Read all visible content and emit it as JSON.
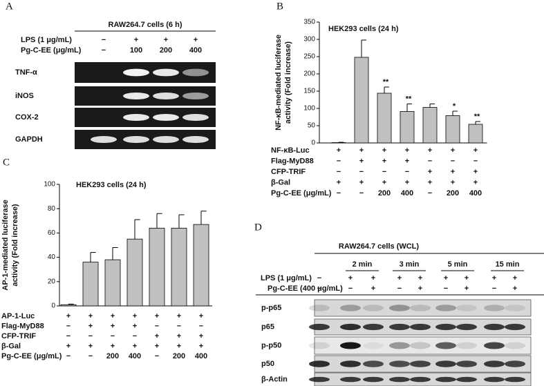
{
  "panel_a": {
    "letter": "A",
    "title": "RAW264.7 cells (6 h)",
    "rows": [
      {
        "label": "LPS (1 μg/mL)",
        "values": [
          "−",
          "+",
          "+",
          "+"
        ]
      },
      {
        "label": "Pg-C-EE (μg/mL)",
        "values": [
          "−",
          "100",
          "200",
          "400"
        ]
      }
    ],
    "bands": [
      "TNF-α",
      "iNOS",
      "COX-2",
      "GAPDH"
    ]
  },
  "chart_data": [
    {
      "type": "bar",
      "letter": "B",
      "title": "HEK293 cells (24 h)",
      "ylabel": [
        "NF-κB-mediated luciferase",
        "activity (Fold increase)"
      ],
      "values": [
        1,
        248,
        144,
        91,
        103,
        79,
        54
      ],
      "errors": [
        1,
        50,
        18,
        22,
        10,
        13,
        8
      ],
      "significance": [
        null,
        null,
        "**",
        "**",
        null,
        "*",
        "**"
      ],
      "color": "#c0c0c0",
      "ylim": [
        0,
        350
      ],
      "yticks": [
        0,
        50,
        100,
        150,
        200,
        250,
        300,
        350
      ],
      "conditions": [
        {
          "label": "NF-κB-Luc",
          "values": [
            "+",
            "+",
            "+",
            "+",
            "+",
            "+",
            "+"
          ]
        },
        {
          "label": "Flag-MyD88",
          "values": [
            "−",
            "+",
            "+",
            "+",
            "−",
            "−",
            "−"
          ]
        },
        {
          "label": "CFP-TRIF",
          "values": [
            "−",
            "−",
            "−",
            "−",
            "+",
            "+",
            "+"
          ]
        },
        {
          "label": "β-Gal",
          "values": [
            "+",
            "+",
            "+",
            "+",
            "+",
            "+",
            "+"
          ]
        },
        {
          "label": "Pg-C-EE (μg/mL)",
          "values": [
            "−",
            "−",
            "200",
            "400",
            "−",
            "200",
            "400"
          ]
        }
      ]
    },
    {
      "type": "bar",
      "letter": "C",
      "title": "HEK293 cells (24 h)",
      "ylabel": [
        "AP-1-mediated luciferase",
        "activity (Fold increase)"
      ],
      "values": [
        1,
        36,
        38,
        55,
        64,
        64,
        67
      ],
      "errors": [
        0.5,
        8,
        10,
        16,
        12,
        11,
        11
      ],
      "color": "#c0c0c0",
      "ylim": [
        0,
        100
      ],
      "yticks": [
        0,
        20,
        40,
        60,
        80,
        100
      ],
      "conditions": [
        {
          "label": "AP-1-Luc",
          "values": [
            "+",
            "+",
            "+",
            "+",
            "+",
            "+",
            "+"
          ]
        },
        {
          "label": "Flag-MyD88",
          "values": [
            "−",
            "+",
            "+",
            "+",
            "−",
            "−",
            "−"
          ]
        },
        {
          "label": "CFP-TRIF",
          "values": [
            "−",
            "−",
            "−",
            "−",
            "+",
            "+",
            "+"
          ]
        },
        {
          "label": "β-Gal",
          "values": [
            "+",
            "+",
            "+",
            "+",
            "+",
            "+",
            "+"
          ]
        },
        {
          "label": "Pg-C-EE (μg/mL)",
          "values": [
            "−",
            "−",
            "200",
            "400",
            "−",
            "200",
            "400"
          ]
        }
      ]
    }
  ],
  "panel_d": {
    "letter": "D",
    "title": "RAW264.7 cells (WCL)",
    "times": [
      "2 min",
      "3 min",
      "5 min",
      "15 min"
    ],
    "rows": [
      {
        "label": "LPS (1 μg/mL)",
        "values": [
          "−",
          "+",
          "+",
          "+",
          "+",
          "+",
          "+",
          "+",
          "+"
        ]
      },
      {
        "label": "Pg-C-EE (400 μg/mL)",
        "values": [
          "−",
          "−",
          "+",
          "−",
          "+",
          "−",
          "+",
          "−",
          "+"
        ]
      }
    ],
    "bands": [
      "p-p65",
      "p65",
      "p-p50",
      "p50",
      "β-Actin"
    ]
  }
}
